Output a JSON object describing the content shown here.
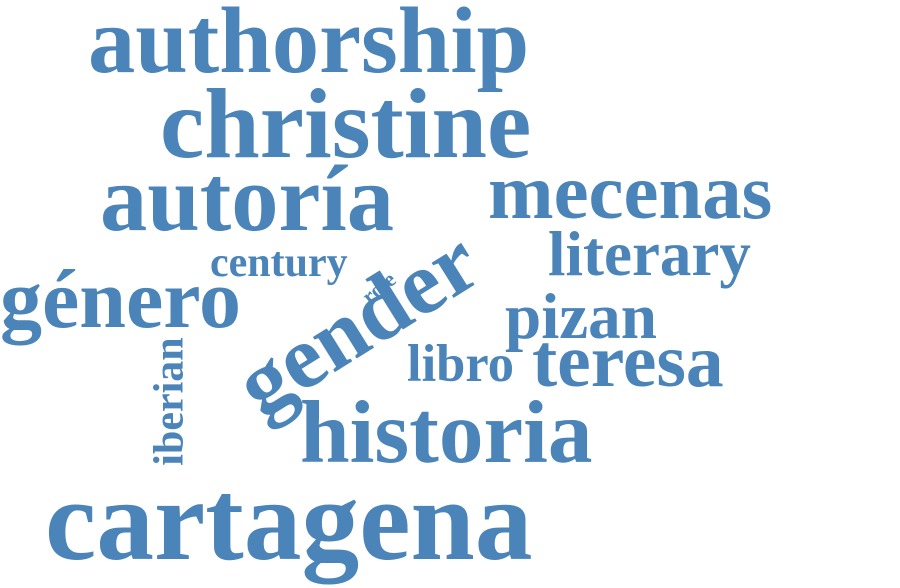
{
  "palette": {
    "word_color": "#4a84b8",
    "background": "#ffffff"
  },
  "words": [
    {
      "id": "authorship",
      "text": "authorship"
    },
    {
      "id": "christine",
      "text": "christine"
    },
    {
      "id": "autoria",
      "text": "autoría"
    },
    {
      "id": "mecenas",
      "text": "mecenas"
    },
    {
      "id": "century",
      "text": "century"
    },
    {
      "id": "literary",
      "text": "literary"
    },
    {
      "id": "genero",
      "text": "género"
    },
    {
      "id": "gender",
      "text": "gender"
    },
    {
      "id": "role",
      "text": "role"
    },
    {
      "id": "pizan",
      "text": "pizan"
    },
    {
      "id": "iberian",
      "text": "iberian"
    },
    {
      "id": "libro",
      "text": "libro"
    },
    {
      "id": "teresa",
      "text": "teresa"
    },
    {
      "id": "historia",
      "text": "historia"
    },
    {
      "id": "cartagena",
      "text": "cartagena"
    }
  ]
}
